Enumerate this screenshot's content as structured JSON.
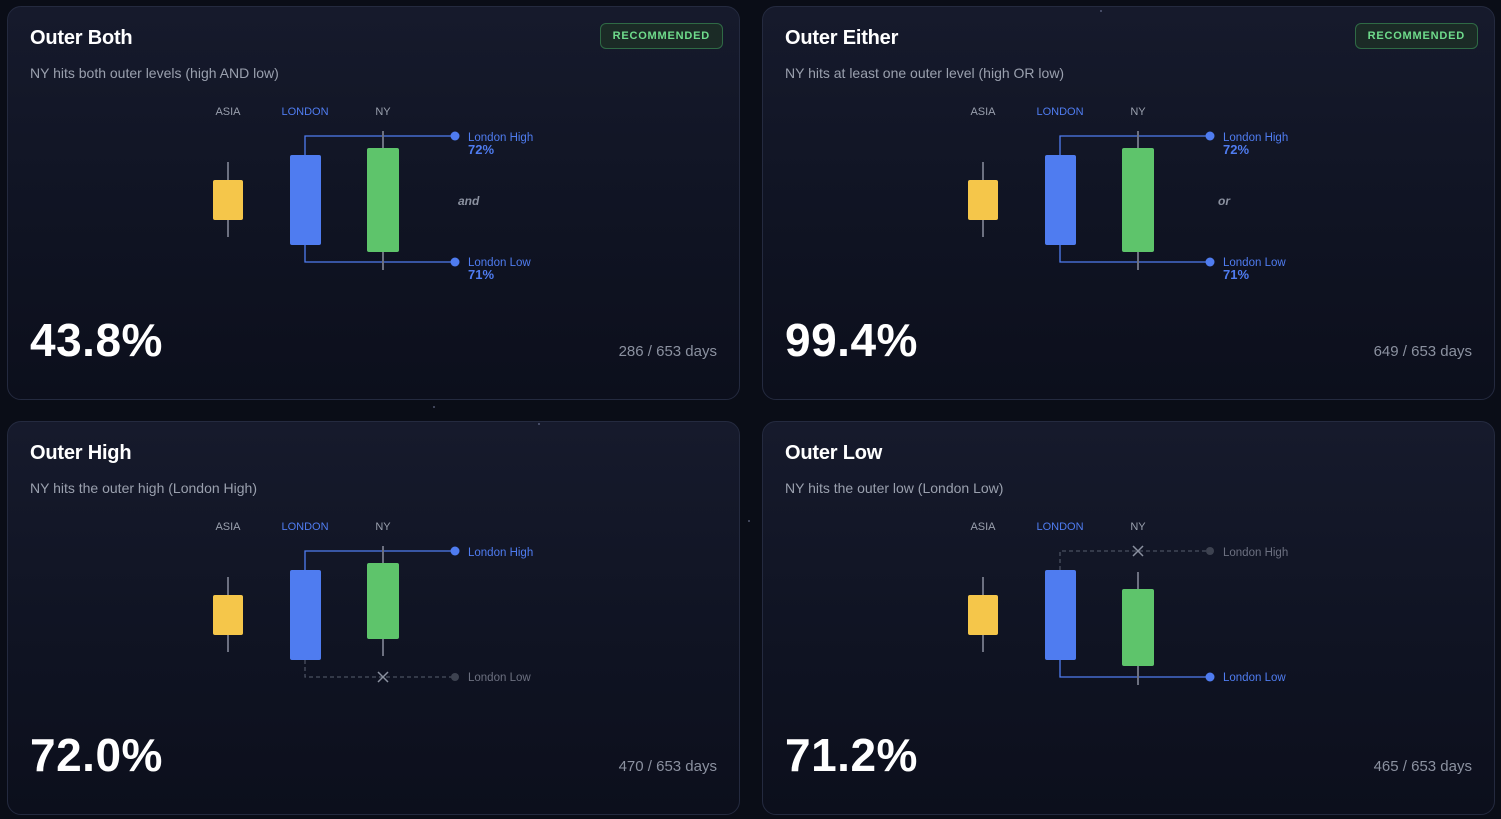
{
  "sessions": {
    "asia": "ASIA",
    "london": "LONDON",
    "ny": "NY"
  },
  "colors": {
    "asia": "#f5c64a",
    "london": "#4f7cf0",
    "ny": "#5ec46b",
    "hit_line": "#4f7cf0",
    "miss_line": "#4a5060",
    "badge_text": "#6fdc8c"
  },
  "cards": [
    {
      "title": "Outer Both",
      "description": "NY hits both outer levels (high AND low)",
      "badge": "RECOMMENDED",
      "connector": "and",
      "high": {
        "label": "London High",
        "pct": "72%",
        "hit": true
      },
      "low": {
        "label": "London Low",
        "pct": "71%",
        "hit": true
      },
      "probability": "43.8%",
      "days": "286 / 653 days",
      "ny_variant": "both"
    },
    {
      "title": "Outer Either",
      "description": "NY hits at least one outer level (high OR low)",
      "badge": "RECOMMENDED",
      "connector": "or",
      "high": {
        "label": "London High",
        "pct": "72%",
        "hit": true
      },
      "low": {
        "label": "London Low",
        "pct": "71%",
        "hit": true
      },
      "probability": "99.4%",
      "days": "649 / 653 days",
      "ny_variant": "both"
    },
    {
      "title": "Outer High",
      "description": "NY hits the outer high (London High)",
      "badge": null,
      "connector": null,
      "high": {
        "label": "London High",
        "pct": null,
        "hit": true
      },
      "low": {
        "label": "London Low",
        "pct": null,
        "hit": false
      },
      "probability": "72.0%",
      "days": "470 / 653 days",
      "ny_variant": "high"
    },
    {
      "title": "Outer Low",
      "description": "NY hits the outer low (London Low)",
      "badge": null,
      "connector": null,
      "high": {
        "label": "London High",
        "pct": null,
        "hit": false
      },
      "low": {
        "label": "London Low",
        "pct": null,
        "hit": true
      },
      "probability": "71.2%",
      "days": "465 / 653 days",
      "ny_variant": "low"
    }
  ]
}
